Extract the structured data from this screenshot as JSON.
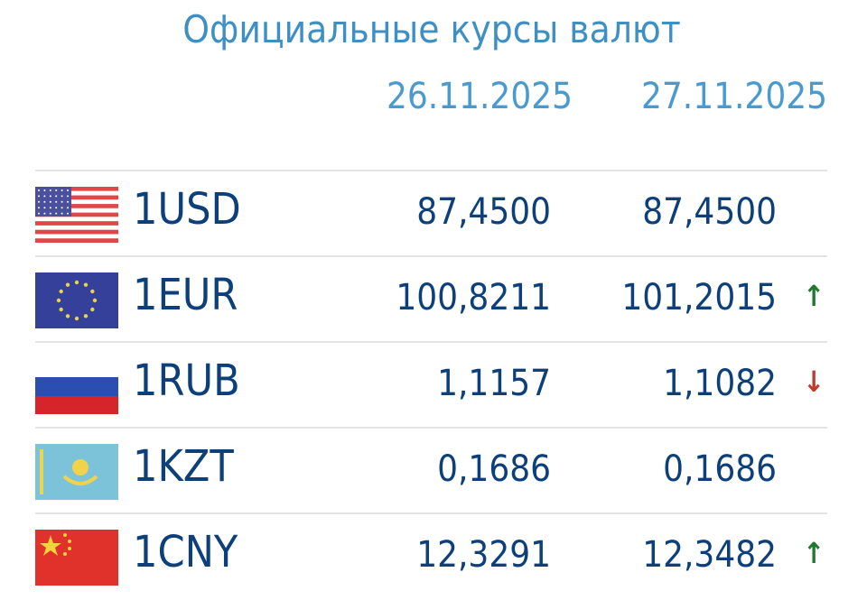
{
  "title": "Официальные курсы валют",
  "dates": [
    "26.11.2025",
    "27.11.2025"
  ],
  "rows": [
    {
      "flag": "us-flag-icon",
      "code": "1USD",
      "v1": "87,4500",
      "v2": "87,4500",
      "trend": ""
    },
    {
      "flag": "eu-flag-icon",
      "code": "1EUR",
      "v1": "100,8211",
      "v2": "101,2015",
      "trend": "↑"
    },
    {
      "flag": "ru-flag-icon",
      "code": "1RUB",
      "v1": "1,1157",
      "v2": "1,1082",
      "trend": "↓"
    },
    {
      "flag": "kz-flag-icon",
      "code": "1KZT",
      "v1": "0,1686",
      "v2": "0,1686",
      "trend": ""
    },
    {
      "flag": "cn-flag-icon",
      "code": "1CNY",
      "v1": "12,3291",
      "v2": "12,3482",
      "trend": "↑"
    }
  ],
  "colors": {
    "title": "#3d8fc4",
    "code": "#0d3f7a",
    "up": "#1e7a2e",
    "down": "#c0392b"
  }
}
